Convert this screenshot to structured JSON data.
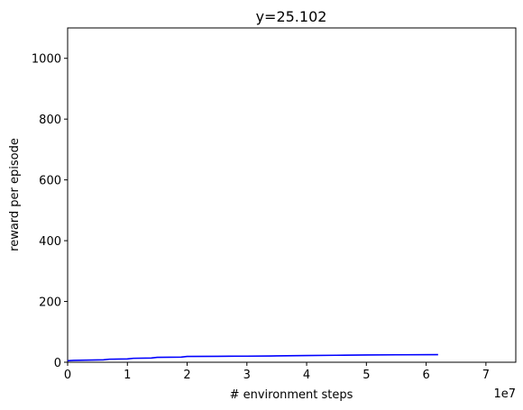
{
  "chart_data": {
    "type": "line",
    "title": "y=25.102",
    "xlabel": "# environment steps",
    "ylabel": "reward per episode",
    "x_offset_label": "1e7",
    "xlim": [
      0,
      75000000
    ],
    "ylim": [
      0,
      1100
    ],
    "x_ticks": [
      0,
      10000000,
      20000000,
      30000000,
      40000000,
      50000000,
      60000000,
      70000000
    ],
    "x_tick_labels": [
      "0",
      "1",
      "2",
      "3",
      "4",
      "5",
      "6",
      "7"
    ],
    "y_ticks": [
      0,
      200,
      400,
      600,
      800,
      1000
    ],
    "y_tick_labels": [
      "0",
      "200",
      "400",
      "600",
      "800",
      "1000"
    ],
    "grid": false,
    "line_color": "#0000ff",
    "series": [
      {
        "x": [
          0,
          1000000,
          3000000,
          6000000,
          7000000,
          10000000,
          11000000,
          14000000,
          15000000,
          19000000,
          20000000,
          25000000,
          30000000,
          34000000,
          35000000,
          40000000,
          45000000,
          50000000,
          55000000,
          62000000
        ],
        "values": [
          5,
          6,
          7,
          8,
          10,
          11,
          13,
          14,
          16,
          17,
          19,
          19.5,
          20,
          20.5,
          21,
          22,
          23,
          24,
          24.5,
          25.1
        ]
      }
    ]
  }
}
